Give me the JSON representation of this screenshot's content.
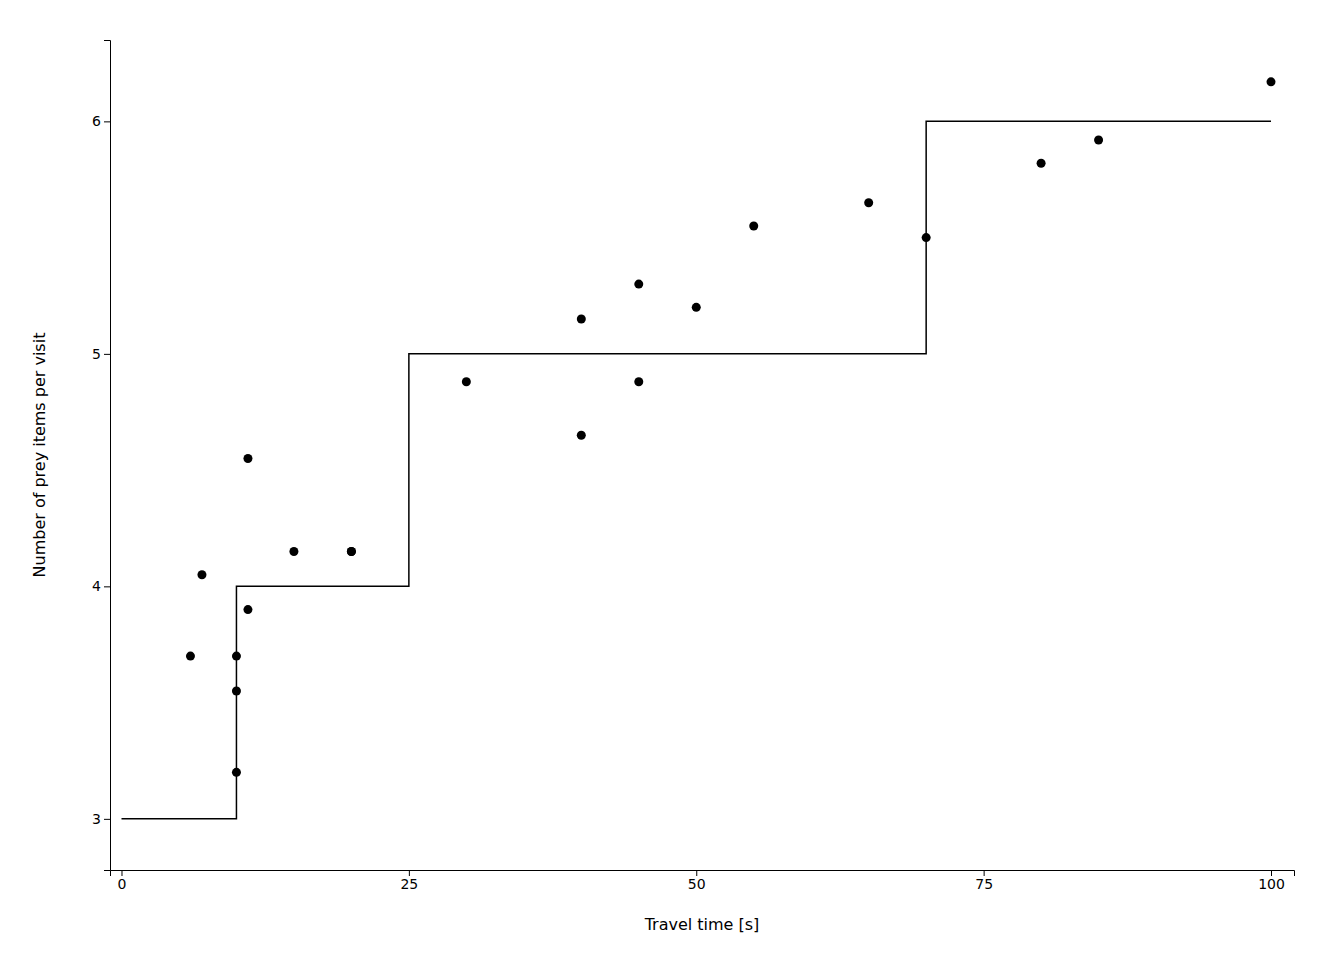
{
  "chart_data": {
    "type": "scatter",
    "xlabel": "Travel time [s]",
    "ylabel": "Number of prey items per visit",
    "series": [
      {
        "type": "line",
        "color": "#000000",
        "x": [
          0,
          10,
          10,
          25,
          25,
          70,
          70,
          100
        ],
        "values": [
          3,
          3,
          4,
          4,
          5,
          5,
          6,
          6
        ]
      },
      {
        "type": "scatter",
        "color": "#000000",
        "x": [
          6,
          7,
          10,
          10,
          10,
          11,
          11,
          15,
          20,
          20,
          30,
          40,
          40,
          45,
          45,
          50,
          55,
          65,
          70,
          80,
          85,
          100
        ],
        "values": [
          3.7,
          4.05,
          3.7,
          3.55,
          3.2,
          4.55,
          3.9,
          4.15,
          4.15,
          4.15,
          4.88,
          4.65,
          5.15,
          5.3,
          4.88,
          5.2,
          5.55,
          5.65,
          5.5,
          5.82,
          5.92,
          6.17
        ]
      }
    ],
    "xlim": [
      -1,
      102
    ],
    "ylim": [
      2.78,
      6.35
    ],
    "xticks": [
      0,
      25,
      50,
      75,
      100
    ],
    "yticks": [
      3,
      4,
      5,
      6
    ],
    "grid": false
  }
}
